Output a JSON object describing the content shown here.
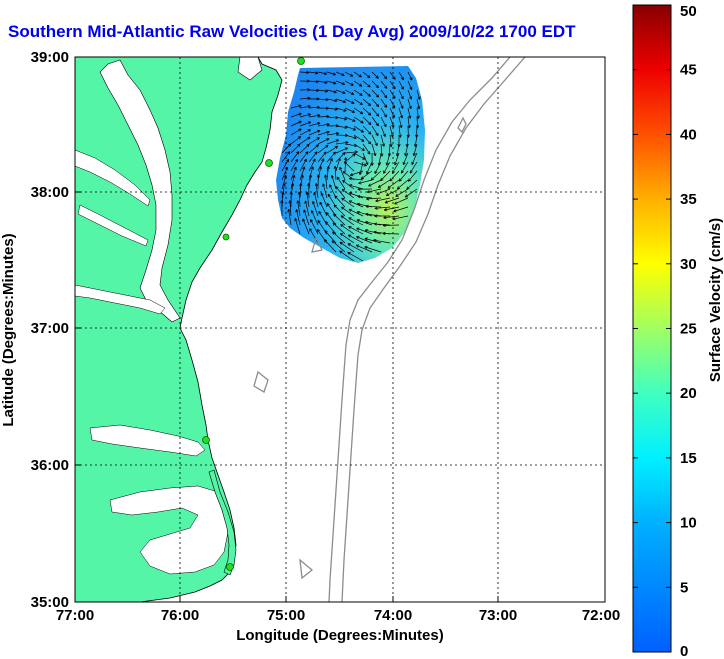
{
  "title": "Southern Mid-Atlantic Raw Velocities (1 Day Avg) 2009/10/22 1700 EDT",
  "xlabel": "Longitude (Degrees:Minutes)",
  "ylabel": "Latitude (Degrees:Minutes)",
  "x_ticks": [
    "77:00",
    "76:00",
    "75:00",
    "74:00",
    "73:00",
    "72:00"
  ],
  "y_ticks": [
    "39:00",
    "38:00",
    "37:00",
    "36:00",
    "35:00"
  ],
  "colorbar": {
    "label": "Surface Velocity (cm/s)",
    "ticks": [
      "0",
      "5",
      "10",
      "15",
      "20",
      "25",
      "30",
      "35",
      "40",
      "45",
      "50"
    ],
    "min": 0,
    "max": 50
  },
  "colors": {
    "land": "#55f5a8",
    "title": "#0000ee",
    "station": "#22dd22",
    "bathymetry": "#8c8c8c"
  },
  "stations_icon": "radar-station-dot"
}
